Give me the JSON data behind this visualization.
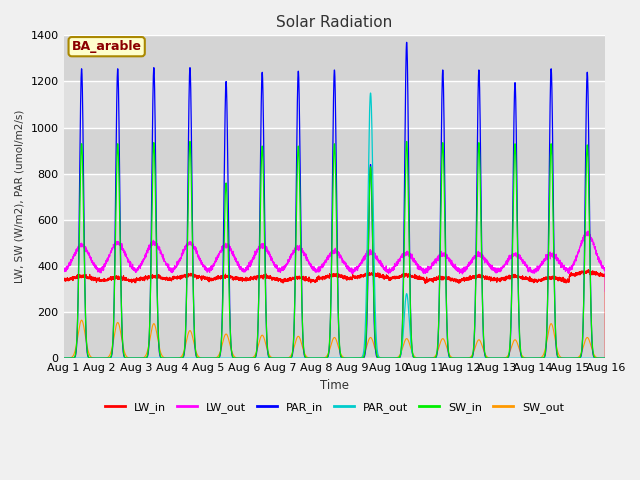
{
  "title": "Solar Radiation",
  "ylabel": "LW, SW (W/m2), PAR (umol/m2/s)",
  "xlabel": "Time",
  "annotation": "BA_arable",
  "ylim": [
    0,
    1400
  ],
  "n_days": 15,
  "xtick_labels": [
    "Aug 1",
    "Aug 2",
    "Aug 3",
    "Aug 4",
    "Aug 5",
    "Aug 6",
    "Aug 7",
    "Aug 8",
    "Aug 9",
    "Aug 10",
    "Aug 11",
    "Aug 12",
    "Aug 13",
    "Aug 14",
    "Aug 15",
    "Aug 16"
  ],
  "colors": {
    "LW_in": "#ff0000",
    "LW_out": "#ff00ff",
    "PAR_in": "#0000ff",
    "PAR_out": "#00cccc",
    "SW_in": "#00ee00",
    "SW_out": "#ff9900"
  },
  "plot_bg_light": "#d8d8d8",
  "plot_bg_dark": "#c8c8c8",
  "PAR_in_peaks": [
    1255,
    1255,
    1260,
    1260,
    1200,
    1240,
    1245,
    1250,
    840,
    1370,
    1250,
    1250,
    1195,
    1255,
    1240
  ],
  "SW_in_peaks": [
    930,
    930,
    935,
    940,
    760,
    920,
    920,
    930,
    830,
    940,
    935,
    935,
    930,
    930,
    925
  ],
  "PAR_out_peaks": [
    0,
    0,
    0,
    0,
    0,
    0,
    0,
    0,
    1150,
    280,
    0,
    0,
    0,
    0,
    0
  ],
  "LW_in_base": [
    340,
    335,
    340,
    345,
    340,
    340,
    335,
    345,
    350,
    345,
    335,
    340,
    340,
    335,
    360
  ],
  "LW_out_peaks": [
    490,
    500,
    500,
    500,
    490,
    490,
    480,
    465,
    460,
    455,
    450,
    450,
    450,
    450,
    540
  ],
  "SW_out_peaks": [
    165,
    155,
    150,
    120,
    105,
    100,
    95,
    90,
    90,
    85,
    85,
    80,
    80,
    150,
    90
  ],
  "pts_per_day": 288
}
